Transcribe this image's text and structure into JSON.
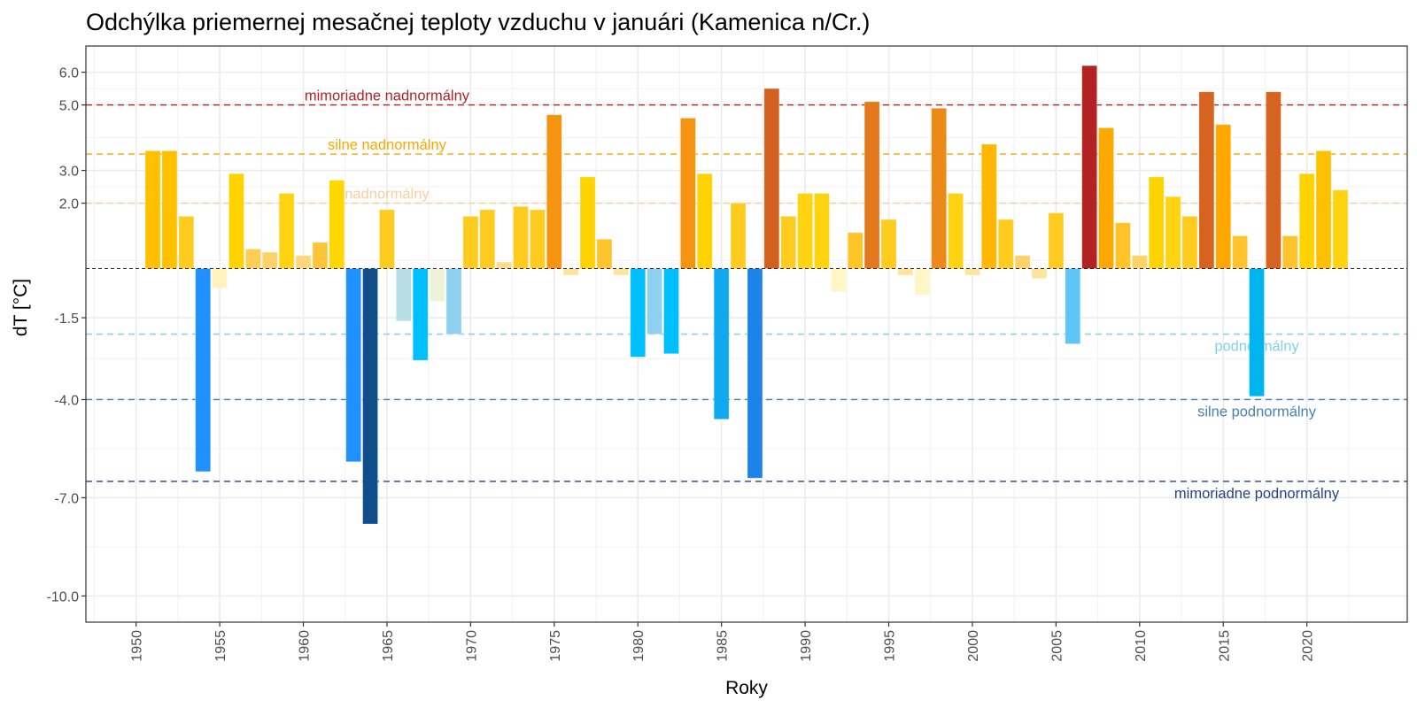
{
  "chart_data": {
    "type": "bar",
    "title": "Odchýlka priemernej mesačnej teploty vzduchu v januári (Kamenica n/Cr.)",
    "xlabel": "Roky",
    "ylabel": "dT [°C]",
    "xlim": [
      1947,
      2026
    ],
    "ylim": [
      -10.8,
      6.8
    ],
    "grid": true,
    "x_ticks": [
      1950,
      1955,
      1960,
      1965,
      1970,
      1975,
      1980,
      1985,
      1990,
      1995,
      2000,
      2005,
      2010,
      2015,
      2020
    ],
    "y_ticks": [
      6.0,
      5.0,
      3.0,
      2.0,
      -1.5,
      -4.0,
      -7.0,
      -10.0
    ],
    "y_tick_labels": [
      "6.0",
      "5.0",
      "3.0",
      "2.0",
      "-1.5",
      "-4.0",
      "-7.0",
      "-10.0"
    ],
    "zero_line": 0,
    "thresholds": [
      {
        "value": 5.0,
        "label": "mimoriadne nadnormálny",
        "color": "#B22222",
        "label_year": 1965,
        "label_value": 5.3
      },
      {
        "value": 3.5,
        "label": "silne nadnormálny",
        "color": "#FFA500",
        "label_year": 1965,
        "label_value": 3.8
      },
      {
        "value": 2.0,
        "label": "nadnormálny",
        "color": "#F5CFA0",
        "label_year": 1965,
        "label_value": 2.3
      },
      {
        "value": -2.0,
        "label": "podnormálny",
        "color": "#87CEEB",
        "label_year": 2017,
        "label_value": -2.35
      },
      {
        "value": -4.0,
        "label": "silne podnormálny",
        "color": "#4682B4",
        "label_year": 2017,
        "label_value": -4.35
      },
      {
        "value": -6.5,
        "label": "mimoriadne podnormálny",
        "color": "#27408B",
        "label_year": 2017,
        "label_value": -6.85
      }
    ],
    "series": [
      {
        "name": "dT",
        "points": [
          {
            "year": 1951,
            "value": 3.6,
            "color": "#FFC000"
          },
          {
            "year": 1952,
            "value": 3.6,
            "color": "#FFC000"
          },
          {
            "year": 1953,
            "value": 1.6,
            "color": "#FFCB1F"
          },
          {
            "year": 1954,
            "value": -6.2,
            "color": "#1E90FF"
          },
          {
            "year": 1955,
            "value": -0.6,
            "color": "#FFF2BF"
          },
          {
            "year": 1956,
            "value": 2.9,
            "color": "#FFD300"
          },
          {
            "year": 1957,
            "value": 0.6,
            "color": "#FFCC55"
          },
          {
            "year": 1958,
            "value": 0.5,
            "color": "#FFD166"
          },
          {
            "year": 1959,
            "value": 2.3,
            "color": "#FFD30F"
          },
          {
            "year": 1960,
            "value": 0.4,
            "color": "#FFD77A"
          },
          {
            "year": 1961,
            "value": 0.8,
            "color": "#FFC43A"
          },
          {
            "year": 1962,
            "value": 2.7,
            "color": "#FFD700"
          },
          {
            "year": 1963,
            "value": -5.9,
            "color": "#1E90FF"
          },
          {
            "year": 1964,
            "value": -7.8,
            "color": "#104E8B"
          },
          {
            "year": 1965,
            "value": 1.8,
            "color": "#FFCB1F"
          },
          {
            "year": 1966,
            "value": -1.6,
            "color": "#B7DDE5"
          },
          {
            "year": 1967,
            "value": -2.8,
            "color": "#00BFFF"
          },
          {
            "year": 1968,
            "value": -1.0,
            "color": "#EEF2D6"
          },
          {
            "year": 1969,
            "value": -2.0,
            "color": "#8DD0F0"
          },
          {
            "year": 1970,
            "value": 1.6,
            "color": "#FFCB1F"
          },
          {
            "year": 1971,
            "value": 1.8,
            "color": "#FFCB1F"
          },
          {
            "year": 1972,
            "value": 0.2,
            "color": "#FFDB8A"
          },
          {
            "year": 1973,
            "value": 1.9,
            "color": "#FFCB1F"
          },
          {
            "year": 1974,
            "value": 1.8,
            "color": "#FFCB1F"
          },
          {
            "year": 1975,
            "value": 4.7,
            "color": "#F5940F"
          },
          {
            "year": 1976,
            "value": -0.2,
            "color": "#FFE59A"
          },
          {
            "year": 1977,
            "value": 2.8,
            "color": "#FFD300"
          },
          {
            "year": 1978,
            "value": 0.9,
            "color": "#FFC32E"
          },
          {
            "year": 1979,
            "value": -0.2,
            "color": "#FFE59A"
          },
          {
            "year": 1980,
            "value": -2.7,
            "color": "#00BFFF"
          },
          {
            "year": 1981,
            "value": -2.0,
            "color": "#8DD0F0"
          },
          {
            "year": 1982,
            "value": -2.6,
            "color": "#00BFFF"
          },
          {
            "year": 1983,
            "value": 4.6,
            "color": "#F5940F"
          },
          {
            "year": 1984,
            "value": 2.9,
            "color": "#FFD300"
          },
          {
            "year": 1985,
            "value": -4.6,
            "color": "#10A9F0"
          },
          {
            "year": 1986,
            "value": 2.0,
            "color": "#FFCB1F"
          },
          {
            "year": 1987,
            "value": -6.4,
            "color": "#1C84E8"
          },
          {
            "year": 1988,
            "value": 5.5,
            "color": "#D2601F"
          },
          {
            "year": 1989,
            "value": 1.6,
            "color": "#FFCB1F"
          },
          {
            "year": 1990,
            "value": 2.3,
            "color": "#FFD30F"
          },
          {
            "year": 1991,
            "value": 2.3,
            "color": "#FFD30F"
          },
          {
            "year": 1992,
            "value": -0.7,
            "color": "#FFF6C6"
          },
          {
            "year": 1993,
            "value": 1.1,
            "color": "#FFC428"
          },
          {
            "year": 1994,
            "value": 5.1,
            "color": "#E4781C"
          },
          {
            "year": 1995,
            "value": 1.5,
            "color": "#FFCB1F"
          },
          {
            "year": 1996,
            "value": -0.2,
            "color": "#FFE59A"
          },
          {
            "year": 1997,
            "value": -0.8,
            "color": "#FFF6C6"
          },
          {
            "year": 1998,
            "value": 4.9,
            "color": "#EB8919"
          },
          {
            "year": 1999,
            "value": 2.3,
            "color": "#FFD30F"
          },
          {
            "year": 2000,
            "value": -0.2,
            "color": "#FFE59A"
          },
          {
            "year": 2001,
            "value": 3.8,
            "color": "#FFB700"
          },
          {
            "year": 2002,
            "value": 1.5,
            "color": "#FFCB1F"
          },
          {
            "year": 2003,
            "value": 0.4,
            "color": "#FFD166"
          },
          {
            "year": 2004,
            "value": -0.3,
            "color": "#FFE59A"
          },
          {
            "year": 2005,
            "value": 1.7,
            "color": "#FFCB1F"
          },
          {
            "year": 2006,
            "value": -2.3,
            "color": "#5EC6F5"
          },
          {
            "year": 2007,
            "value": 6.2,
            "color": "#B22222"
          },
          {
            "year": 2008,
            "value": 4.3,
            "color": "#FFA800"
          },
          {
            "year": 2009,
            "value": 1.4,
            "color": "#FFC428"
          },
          {
            "year": 2010,
            "value": 0.4,
            "color": "#FFD166"
          },
          {
            "year": 2011,
            "value": 2.8,
            "color": "#FFD300"
          },
          {
            "year": 2012,
            "value": 2.2,
            "color": "#FFD30F"
          },
          {
            "year": 2013,
            "value": 1.6,
            "color": "#FFCB1F"
          },
          {
            "year": 2014,
            "value": 5.4,
            "color": "#D6631F"
          },
          {
            "year": 2015,
            "value": 4.4,
            "color": "#FFA800"
          },
          {
            "year": 2016,
            "value": 1.0,
            "color": "#FFC32E"
          },
          {
            "year": 2017,
            "value": -3.9,
            "color": "#00B5EF"
          },
          {
            "year": 2018,
            "value": 5.4,
            "color": "#D6631F"
          },
          {
            "year": 2019,
            "value": 1.0,
            "color": "#FFC32E"
          },
          {
            "year": 2020,
            "value": 2.9,
            "color": "#FFD300"
          },
          {
            "year": 2021,
            "value": 3.6,
            "color": "#FFC000"
          },
          {
            "year": 2022,
            "value": 2.4,
            "color": "#FFD30F"
          }
        ]
      }
    ]
  }
}
